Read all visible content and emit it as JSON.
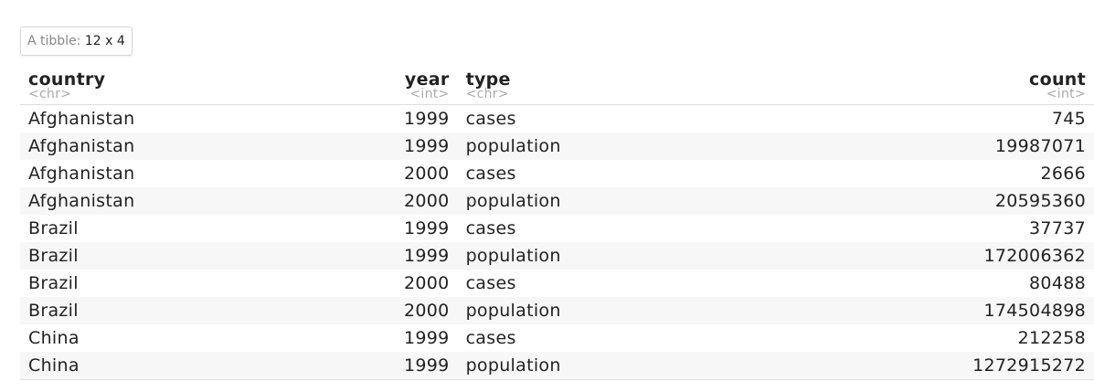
{
  "caption": {
    "prefix": "A tibble:",
    "dims": "12 x 4"
  },
  "columns": [
    {
      "name": "country",
      "type": "<chr>"
    },
    {
      "name": "year",
      "type": "<int>"
    },
    {
      "name": "type",
      "type": "<chr>"
    },
    {
      "name": "count",
      "type": "<int>"
    }
  ],
  "rows": [
    [
      "Afghanistan",
      "1999",
      "cases",
      "745"
    ],
    [
      "Afghanistan",
      "1999",
      "population",
      "19987071"
    ],
    [
      "Afghanistan",
      "2000",
      "cases",
      "2666"
    ],
    [
      "Afghanistan",
      "2000",
      "population",
      "20595360"
    ],
    [
      "Brazil",
      "1999",
      "cases",
      "37737"
    ],
    [
      "Brazil",
      "1999",
      "population",
      "172006362"
    ],
    [
      "Brazil",
      "2000",
      "cases",
      "80488"
    ],
    [
      "Brazil",
      "2000",
      "population",
      "174504898"
    ],
    [
      "China",
      "1999",
      "cases",
      "212258"
    ],
    [
      "China",
      "1999",
      "population",
      "1272915272"
    ]
  ]
}
